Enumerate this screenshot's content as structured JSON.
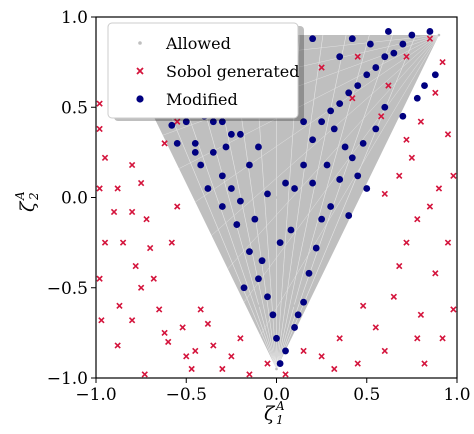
{
  "chart_data": {
    "type": "scatter",
    "xlabel": {
      "base": "ζ",
      "sub": "1",
      "sup": "A"
    },
    "ylabel": {
      "base": "ζ",
      "sub": "2",
      "sup": "A"
    },
    "xlim": [
      -1.0,
      1.0
    ],
    "ylim": [
      -1.0,
      1.0
    ],
    "x_ticks": [
      "−1.0",
      "−0.5",
      "0.0",
      "0.5",
      "1.0"
    ],
    "y_ticks": [
      "−1.0",
      "−0.5",
      "0.0",
      "0.5",
      "1.0"
    ],
    "x_tick_values": [
      -1.0,
      -0.5,
      0.0,
      0.5,
      1.0
    ],
    "y_tick_values": [
      -1.0,
      -0.5,
      0.0,
      0.5,
      1.0
    ],
    "grid": false,
    "legend_position": "top-left",
    "allowed_region": {
      "description_vertices": [
        [
          -0.9,
          0.9
        ],
        [
          0.9,
          0.9
        ],
        [
          0.0,
          -0.95
        ]
      ]
    },
    "series": [
      {
        "name": "Allowed",
        "marker": "dot",
        "color": "#bfbfbf",
        "points": [
          [
            -0.9,
            0.9
          ],
          [
            0.9,
            0.9
          ],
          [
            0.0,
            -0.95
          ],
          [
            -0.5,
            0.3
          ],
          [
            0.5,
            0.3
          ],
          [
            0.0,
            0.0
          ],
          [
            -0.3,
            -0.2
          ],
          [
            0.3,
            -0.2
          ],
          [
            0.0,
            0.6
          ],
          [
            -0.6,
            0.8
          ],
          [
            0.6,
            0.8
          ],
          [
            0.1,
            -0.6
          ],
          [
            -0.1,
            -0.6
          ]
        ]
      },
      {
        "name": "Sobol generated",
        "marker": "x",
        "color": "#d4143c",
        "points": [
          [
            -0.98,
            0.52
          ],
          [
            -0.98,
            0.38
          ],
          [
            -0.95,
            0.22
          ],
          [
            -0.98,
            0.05
          ],
          [
            -0.95,
            -0.25
          ],
          [
            -0.98,
            -0.45
          ],
          [
            -0.97,
            -0.68
          ],
          [
            -0.9,
            -0.08
          ],
          [
            -0.88,
            0.05
          ],
          [
            -0.87,
            -0.6
          ],
          [
            -0.88,
            -0.82
          ],
          [
            -0.8,
            0.18
          ],
          [
            -0.8,
            -0.08
          ],
          [
            -0.78,
            -0.38
          ],
          [
            -0.8,
            -0.68
          ],
          [
            -0.75,
            0.08
          ],
          [
            -0.73,
            -0.98
          ],
          [
            -0.72,
            -0.12
          ],
          [
            -0.7,
            -0.28
          ],
          [
            -0.68,
            -0.45
          ],
          [
            -0.65,
            -0.62
          ],
          [
            -0.62,
            -0.75
          ],
          [
            -0.6,
            -0.8
          ],
          [
            -0.58,
            -0.25
          ],
          [
            -0.55,
            -0.05
          ],
          [
            -0.52,
            -0.72
          ],
          [
            -0.5,
            -0.88
          ],
          [
            -0.47,
            -0.95
          ],
          [
            -0.45,
            -0.85
          ],
          [
            -0.42,
            -0.62
          ],
          [
            -0.38,
            -0.7
          ],
          [
            -0.35,
            -0.82
          ],
          [
            -0.3,
            -0.95
          ],
          [
            -0.25,
            -0.88
          ],
          [
            -0.2,
            -0.78
          ],
          [
            -0.15,
            -0.98
          ],
          [
            -0.7,
            0.92
          ],
          [
            -0.62,
            0.82
          ],
          [
            -0.68,
            0.62
          ],
          [
            -0.5,
            0.68
          ],
          [
            -0.45,
            0.55
          ],
          [
            -0.35,
            0.62
          ],
          [
            -0.22,
            0.58
          ],
          [
            -0.12,
            0.48
          ],
          [
            0.05,
            0.85
          ],
          [
            0.25,
            0.72
          ],
          [
            0.45,
            0.78
          ],
          [
            0.62,
            0.62
          ],
          [
            0.72,
            0.78
          ],
          [
            0.8,
            0.42
          ],
          [
            0.88,
            0.58
          ],
          [
            0.95,
            0.35
          ],
          [
            0.98,
            0.12
          ],
          [
            0.9,
            0.05
          ],
          [
            0.85,
            -0.05
          ],
          [
            0.78,
            -0.12
          ],
          [
            0.95,
            -0.25
          ],
          [
            0.72,
            -0.25
          ],
          [
            0.68,
            -0.38
          ],
          [
            0.88,
            -0.42
          ],
          [
            0.65,
            -0.55
          ],
          [
            0.8,
            -0.65
          ],
          [
            0.92,
            -0.78
          ],
          [
            0.55,
            -0.72
          ],
          [
            0.6,
            -0.85
          ],
          [
            0.45,
            -0.92
          ],
          [
            0.35,
            -0.78
          ],
          [
            0.25,
            -0.88
          ],
          [
            0.82,
            -0.92
          ],
          [
            0.98,
            -0.62
          ],
          [
            0.75,
            0.22
          ],
          [
            0.72,
            0.32
          ],
          [
            0.68,
            0.12
          ],
          [
            0.6,
            0.02
          ],
          [
            0.92,
            0.75
          ],
          [
            0.48,
            -0.6
          ],
          [
            0.32,
            -0.95
          ],
          [
            0.15,
            -0.85
          ],
          [
            0.05,
            -0.98
          ],
          [
            -0.05,
            -0.92
          ],
          [
            0.42,
            0.55
          ],
          [
            0.58,
            0.45
          ],
          [
            0.85,
            0.88
          ],
          [
            -0.88,
            0.72
          ],
          [
            -0.55,
            0.42
          ],
          [
            -0.62,
            0.3
          ],
          [
            -0.85,
            -0.25
          ],
          [
            -0.75,
            -0.5
          ],
          [
            0.78,
            -0.78
          ]
        ]
      },
      {
        "name": "Modified",
        "marker": "circle",
        "color": "#000080",
        "points": [
          [
            -0.62,
            0.82
          ],
          [
            -0.5,
            0.72
          ],
          [
            -0.42,
            0.68
          ],
          [
            -0.35,
            0.62
          ],
          [
            -0.3,
            0.55
          ],
          [
            -0.5,
            0.42
          ],
          [
            -0.58,
            0.4
          ],
          [
            -0.55,
            0.3
          ],
          [
            -0.45,
            0.3
          ],
          [
            -0.4,
            0.45
          ],
          [
            -0.35,
            0.42
          ],
          [
            -0.3,
            0.42
          ],
          [
            -0.25,
            0.35
          ],
          [
            -0.2,
            0.35
          ],
          [
            -0.45,
            0.25
          ],
          [
            -0.42,
            0.18
          ],
          [
            -0.3,
            0.12
          ],
          [
            -0.25,
            0.05
          ],
          [
            -0.2,
            -0.02
          ],
          [
            -0.15,
            0.18
          ],
          [
            -0.1,
            0.28
          ],
          [
            -0.38,
            0.05
          ],
          [
            -0.3,
            -0.05
          ],
          [
            -0.22,
            -0.15
          ],
          [
            -0.15,
            -0.3
          ],
          [
            -0.1,
            -0.45
          ],
          [
            -0.05,
            -0.55
          ],
          [
            -0.02,
            -0.65
          ],
          [
            0.0,
            -0.78
          ],
          [
            0.02,
            -0.92
          ],
          [
            0.05,
            -0.85
          ],
          [
            0.1,
            -0.72
          ],
          [
            -0.12,
            -0.12
          ],
          [
            -0.05,
            0.02
          ],
          [
            0.05,
            0.08
          ],
          [
            0.1,
            0.05
          ],
          [
            0.15,
            0.18
          ],
          [
            0.2,
            0.32
          ],
          [
            0.25,
            0.42
          ],
          [
            0.3,
            0.48
          ],
          [
            0.35,
            0.52
          ],
          [
            0.4,
            0.58
          ],
          [
            0.45,
            0.62
          ],
          [
            0.5,
            0.68
          ],
          [
            0.55,
            0.72
          ],
          [
            0.6,
            0.78
          ],
          [
            0.65,
            0.8
          ],
          [
            0.7,
            0.85
          ],
          [
            0.75,
            0.9
          ],
          [
            0.62,
            0.92
          ],
          [
            0.85,
            0.92
          ],
          [
            0.88,
            0.68
          ],
          [
            0.82,
            0.62
          ],
          [
            0.78,
            0.55
          ],
          [
            0.7,
            0.45
          ],
          [
            0.6,
            0.5
          ],
          [
            0.55,
            0.38
          ],
          [
            0.48,
            0.3
          ],
          [
            0.42,
            0.22
          ],
          [
            0.35,
            0.1
          ],
          [
            0.3,
            -0.05
          ],
          [
            0.25,
            -0.12
          ],
          [
            0.22,
            -0.28
          ],
          [
            0.18,
            -0.42
          ],
          [
            0.15,
            -0.58
          ],
          [
            0.12,
            -0.65
          ],
          [
            -0.18,
            -0.5
          ],
          [
            -0.08,
            -0.35
          ],
          [
            0.02,
            -0.25
          ],
          [
            0.08,
            -0.18
          ],
          [
            0.2,
            0.08
          ],
          [
            0.28,
            0.18
          ],
          [
            0.38,
            0.28
          ],
          [
            0.45,
            0.12
          ],
          [
            0.32,
            0.38
          ],
          [
            0.15,
            0.42
          ],
          [
            0.05,
            0.48
          ],
          [
            -0.05,
            0.55
          ],
          [
            -0.15,
            0.6
          ],
          [
            -0.22,
            0.72
          ],
          [
            -0.1,
            0.78
          ],
          [
            0.02,
            0.72
          ],
          [
            0.1,
            0.82
          ],
          [
            0.2,
            0.88
          ],
          [
            0.35,
            0.78
          ],
          [
            0.42,
            0.88
          ],
          [
            0.52,
            0.85
          ],
          [
            -0.35,
            0.25
          ],
          [
            -0.28,
            0.28
          ],
          [
            0.4,
            -0.1
          ],
          [
            0.5,
            0.05
          ]
        ]
      }
    ]
  }
}
